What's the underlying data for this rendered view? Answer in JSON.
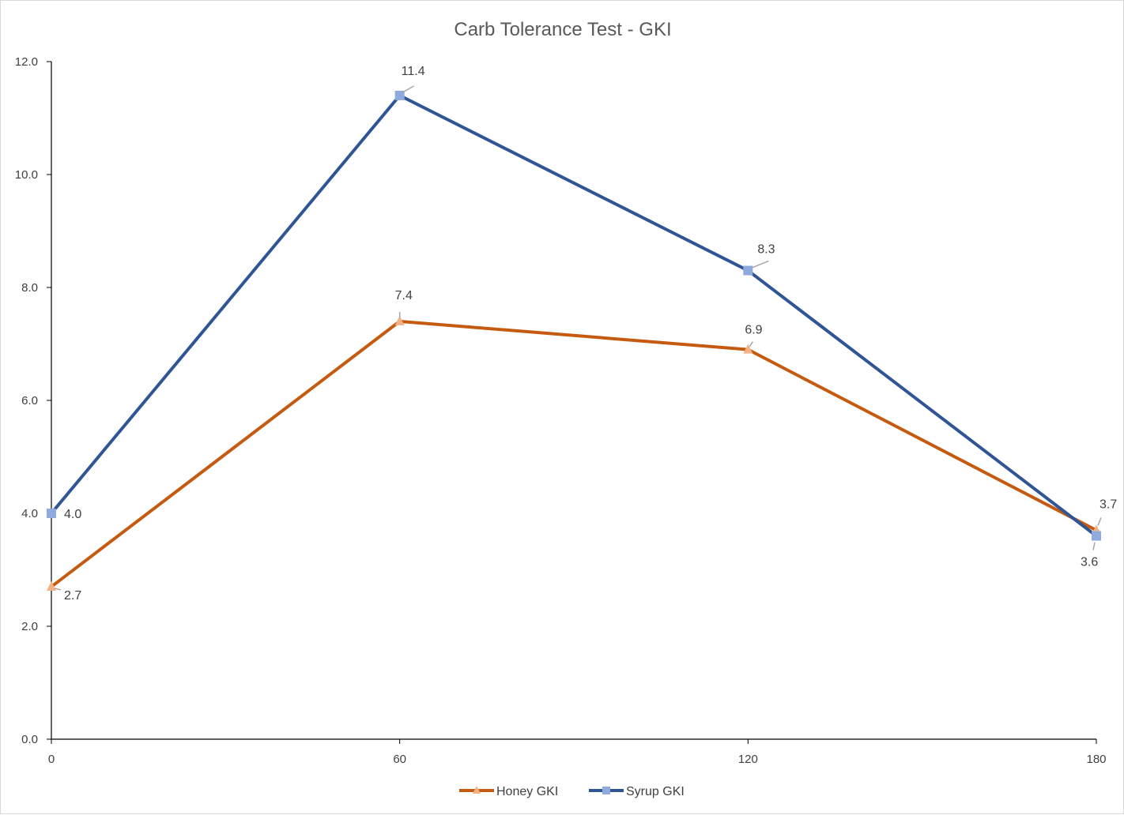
{
  "chart_data": {
    "type": "line",
    "title": "Carb Tolerance Test - GKI",
    "xlabel": "",
    "ylabel": "",
    "x": [
      0,
      60,
      120,
      180
    ],
    "x_tick_labels": [
      "0",
      "60",
      "120",
      "180"
    ],
    "ylim": [
      0,
      12
    ],
    "y_tick_labels": [
      "0.0",
      "2.0",
      "4.0",
      "6.0",
      "8.0",
      "10.0",
      "12.0"
    ],
    "grid": false,
    "legend_position": "bottom",
    "series": [
      {
        "name": "Honey GKI",
        "values": [
          2.7,
          7.4,
          6.9,
          3.7
        ],
        "labels": [
          "2.7",
          "7.4",
          "6.9",
          "3.7"
        ],
        "line_color": "#C55A11",
        "marker_color": "#F4B183",
        "marker": "triangle"
      },
      {
        "name": "Syrup GKI",
        "values": [
          4.0,
          11.4,
          8.3,
          3.6
        ],
        "labels": [
          "4.0",
          "11.4",
          "8.3",
          "3.6"
        ],
        "line_color": "#2F5597",
        "marker_color": "#8FAADC",
        "marker": "square"
      }
    ]
  }
}
